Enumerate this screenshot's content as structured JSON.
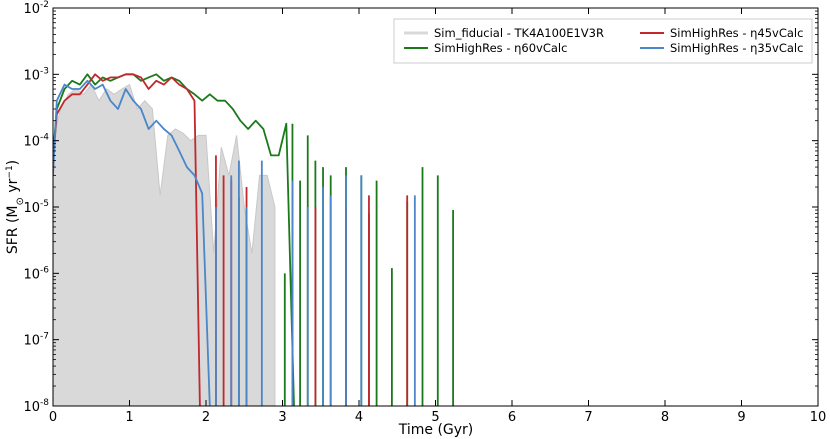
{
  "chart_data": {
    "type": "line",
    "xlabel": "Time (Gyr)",
    "ylabel_main": "SFR (M",
    "ylabel_sub": "⊙",
    "ylabel_unit": " yr",
    "ylabel_sup": "−1",
    "ylabel_close": ")",
    "xlim": [
      0,
      10
    ],
    "ylim": [
      1e-08,
      0.01
    ],
    "yscale": "log",
    "grid": false,
    "legend_position": "top-right",
    "x_ticks": [
      "0",
      "1",
      "2",
      "3",
      "4",
      "5",
      "6",
      "7",
      "8",
      "9",
      "10"
    ],
    "y_ticks": [
      {
        "base": "10",
        "exp": "-8"
      },
      {
        "base": "10",
        "exp": "-7"
      },
      {
        "base": "10",
        "exp": "-6"
      },
      {
        "base": "10",
        "exp": "-5"
      },
      {
        "base": "10",
        "exp": "-4"
      },
      {
        "base": "10",
        "exp": "-3"
      },
      {
        "base": "10",
        "exp": "-2"
      }
    ],
    "series": [
      {
        "name": "Sim_fiducial - TK4A100E1V3R",
        "style": "area",
        "color": "#d9d9d9",
        "x": [
          0.0,
          0.1,
          0.2,
          0.3,
          0.4,
          0.5,
          0.6,
          0.7,
          0.8,
          0.9,
          1.0,
          1.1,
          1.2,
          1.3,
          1.4,
          1.5,
          1.6,
          1.7,
          1.8,
          1.9,
          2.0,
          2.1,
          2.2,
          2.3,
          2.4,
          2.5,
          2.6,
          2.7,
          2.8,
          2.9
        ],
        "y": [
          0.0001,
          0.0003,
          0.0005,
          0.0006,
          0.0005,
          0.0007,
          0.0004,
          0.0006,
          0.0005,
          0.0006,
          0.0007,
          0.0003,
          0.0004,
          0.0003,
          1.5e-05,
          0.00012,
          0.00015,
          0.00013,
          0.0001,
          0.00012,
          0.00012,
          2e-06,
          8e-05,
          3e-05,
          0.00012,
          1e-05,
          2e-06,
          3e-05,
          3e-05,
          1e-05
        ]
      },
      {
        "name": "SimHighRes - η60vCalc",
        "style": "line",
        "color": "#1a7a1a",
        "x": [
          0.0,
          0.05,
          0.15,
          0.25,
          0.35,
          0.45,
          0.55,
          0.65,
          0.75,
          0.85,
          0.95,
          1.05,
          1.15,
          1.25,
          1.35,
          1.45,
          1.55,
          1.65,
          1.75,
          1.85,
          1.95,
          2.05,
          2.15,
          2.25,
          2.35,
          2.45,
          2.55,
          2.65,
          2.75,
          2.85,
          2.95,
          3.05,
          3.15
        ],
        "y": [
          6e-05,
          0.0003,
          0.0006,
          0.0008,
          0.0007,
          0.001,
          0.0007,
          0.0009,
          0.0008,
          0.0009,
          0.001,
          0.001,
          0.0008,
          0.0009,
          0.001,
          0.0008,
          0.0009,
          0.0008,
          0.0006,
          0.0005,
          0.0004,
          0.0005,
          0.0004,
          0.0004,
          0.0003,
          0.0002,
          0.00015,
          0.0002,
          0.00015,
          6e-05,
          6e-05,
          0.00018,
          1e-08
        ],
        "spikes": [
          [
            3.03,
            1e-06
          ],
          [
            3.13,
            0.00018
          ],
          [
            3.23,
            2.5e-05
          ],
          [
            3.33,
            0.00012
          ],
          [
            3.43,
            5e-05
          ],
          [
            3.53,
            4e-05
          ],
          [
            3.63,
            3e-05
          ],
          [
            3.83,
            4e-05
          ],
          [
            4.03,
            3e-05
          ],
          [
            4.13,
            8e-06
          ],
          [
            4.23,
            2.5e-05
          ],
          [
            4.43,
            1.2e-06
          ],
          [
            4.63,
            1.2e-05
          ],
          [
            4.83,
            4e-05
          ],
          [
            5.03,
            3e-05
          ],
          [
            5.23,
            9e-06
          ]
        ]
      },
      {
        "name": "SimHighRes - η45vCalc",
        "style": "line",
        "color": "#c0282d",
        "x": [
          0.0,
          0.05,
          0.15,
          0.25,
          0.35,
          0.45,
          0.55,
          0.65,
          0.75,
          0.85,
          0.95,
          1.05,
          1.15,
          1.25,
          1.35,
          1.45,
          1.55,
          1.65,
          1.75,
          1.85,
          1.92
        ],
        "y": [
          5e-05,
          0.00025,
          0.0004,
          0.0005,
          0.0005,
          0.0007,
          0.001,
          0.0008,
          0.0009,
          0.0009,
          0.001,
          0.001,
          0.0009,
          0.0006,
          0.0008,
          0.0007,
          0.0009,
          0.0007,
          0.0006,
          0.0004,
          1e-08
        ],
        "spikes": [
          [
            2.13,
            6e-05
          ],
          [
            2.23,
            3e-05
          ],
          [
            2.33,
            2.5e-05
          ],
          [
            2.43,
            1.4e-05
          ],
          [
            2.53,
            2e-05
          ],
          [
            3.43,
            1e-05
          ],
          [
            3.83,
            1e-05
          ],
          [
            4.13,
            1.5e-05
          ],
          [
            4.63,
            1.5e-05
          ]
        ]
      },
      {
        "name": "SimHighRes - η35vCalc",
        "style": "line",
        "color": "#4a86c8",
        "x": [
          0.0,
          0.05,
          0.15,
          0.25,
          0.35,
          0.45,
          0.55,
          0.65,
          0.75,
          0.85,
          0.95,
          1.05,
          1.15,
          1.25,
          1.35,
          1.45,
          1.55,
          1.65,
          1.75,
          1.85,
          1.95,
          2.05
        ],
        "y": [
          3e-05,
          0.0004,
          0.0007,
          0.0006,
          0.0006,
          0.0008,
          0.0006,
          0.0007,
          0.0004,
          0.0003,
          0.0006,
          0.0004,
          0.0003,
          0.00015,
          0.0002,
          0.00015,
          0.00012,
          7e-05,
          4e-05,
          3e-05,
          1.6e-05,
          1e-08
        ],
        "spikes": [
          [
            2.13,
            1e-05
          ],
          [
            2.33,
            3e-05
          ],
          [
            2.43,
            5e-05
          ],
          [
            2.53,
            1e-05
          ],
          [
            2.73,
            5e-05
          ],
          [
            3.13,
            2.5e-05
          ],
          [
            3.33,
            1e-05
          ],
          [
            3.53,
            2e-05
          ],
          [
            3.63,
            1.5e-05
          ],
          [
            3.83,
            3e-05
          ],
          [
            4.03,
            3e-05
          ],
          [
            4.73,
            1.5e-05
          ]
        ]
      }
    ]
  }
}
